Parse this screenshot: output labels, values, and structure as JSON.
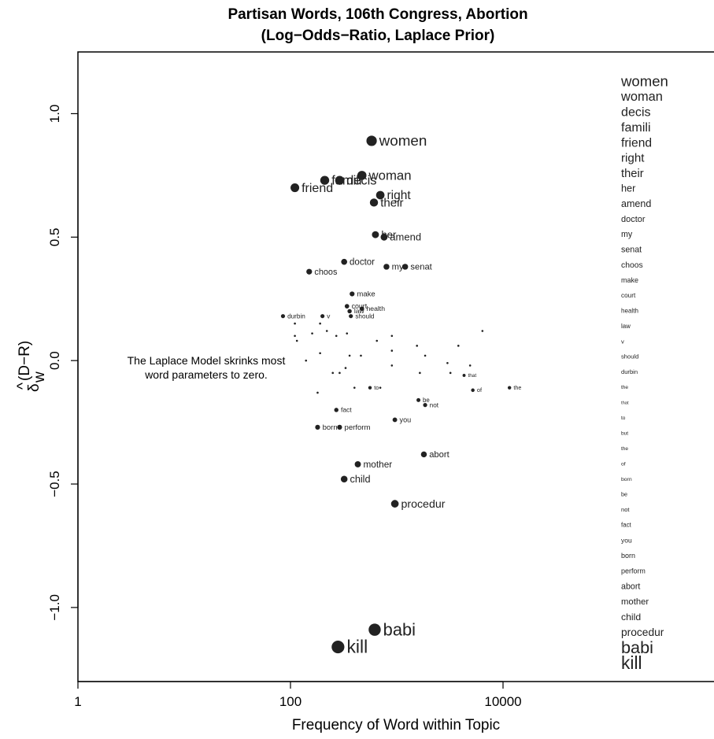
{
  "chart_data": {
    "type": "scatter",
    "title": "Partisan Words, 106th Congress,  Abortion",
    "subtitle": "(Log−Odds−Ratio, Laplace Prior)",
    "xlabel": "Frequency of Word within Topic",
    "ylabel_main": "δ",
    "ylabel_sub": "w",
    "ylabel_sup": "(D−R)",
    "ylabel_hat": "^",
    "x_scale": "log",
    "xlim": [
      1,
      1000000
    ],
    "ylim": [
      -1.3,
      1.25
    ],
    "x_ticks": [
      {
        "value": 1,
        "label": "1"
      },
      {
        "value": 100,
        "label": "100"
      },
      {
        "value": 10000,
        "label": "10000"
      }
    ],
    "y_ticks": [
      {
        "value": -1.0,
        "label": "−1.0"
      },
      {
        "value": -0.5,
        "label": "−0.5"
      },
      {
        "value": 0.0,
        "label": "0.0"
      },
      {
        "value": 0.5,
        "label": "0.5"
      },
      {
        "value": 1.0,
        "label": "1.0"
      }
    ],
    "annotation": [
      "The Laplace Model skrinks most",
      "word parameters to zero."
    ],
    "color": "#222222",
    "labeled_points": [
      {
        "word": "women",
        "x": 580,
        "y": 0.89
      },
      {
        "word": "woman",
        "x": 470,
        "y": 0.75
      },
      {
        "word": "decis",
        "x": 290,
        "y": 0.73
      },
      {
        "word": "famili",
        "x": 210,
        "y": 0.73
      },
      {
        "word": "friend",
        "x": 110,
        "y": 0.7
      },
      {
        "word": "right",
        "x": 700,
        "y": 0.67
      },
      {
        "word": "their",
        "x": 610,
        "y": 0.64
      },
      {
        "word": "her",
        "x": 630,
        "y": 0.51
      },
      {
        "word": "amend",
        "x": 760,
        "y": 0.5
      },
      {
        "word": "doctor",
        "x": 320,
        "y": 0.4
      },
      {
        "word": "my",
        "x": 800,
        "y": 0.38
      },
      {
        "word": "senat",
        "x": 1200,
        "y": 0.38
      },
      {
        "word": "choos",
        "x": 150,
        "y": 0.36
      },
      {
        "word": "make",
        "x": 380,
        "y": 0.27
      },
      {
        "word": "court",
        "x": 340,
        "y": 0.22
      },
      {
        "word": "health",
        "x": 470,
        "y": 0.21
      },
      {
        "word": "law",
        "x": 360,
        "y": 0.2
      },
      {
        "word": "v",
        "x": 200,
        "y": 0.18
      },
      {
        "word": "should",
        "x": 370,
        "y": 0.18
      },
      {
        "word": "durbin",
        "x": 85,
        "y": 0.18
      },
      {
        "word": "the",
        "x": 11500,
        "y": -0.11
      },
      {
        "word": "of",
        "x": 5200,
        "y": -0.12
      },
      {
        "word": "that",
        "x": 4300,
        "y": -0.06
      },
      {
        "word": "to",
        "x": 560,
        "y": -0.11
      },
      {
        "word": "be",
        "x": 1600,
        "y": -0.16
      },
      {
        "word": "not",
        "x": 1850,
        "y": -0.18
      },
      {
        "word": "fact",
        "x": 270,
        "y": -0.2
      },
      {
        "word": "you",
        "x": 960,
        "y": -0.24
      },
      {
        "word": "born",
        "x": 180,
        "y": -0.27
      },
      {
        "word": "perform",
        "x": 290,
        "y": -0.27
      },
      {
        "word": "abort",
        "x": 1800,
        "y": -0.38
      },
      {
        "word": "mother",
        "x": 430,
        "y": -0.42
      },
      {
        "word": "child",
        "x": 320,
        "y": -0.48
      },
      {
        "word": "procedur",
        "x": 960,
        "y": -0.58
      },
      {
        "word": "babi",
        "x": 620,
        "y": -1.09
      },
      {
        "word": "kill",
        "x": 280,
        "y": -1.16
      }
    ],
    "unlabeled_points": [
      [
        110,
        0.15
      ],
      [
        110,
        0.1
      ],
      [
        115,
        0.08
      ],
      [
        160,
        0.11
      ],
      [
        190,
        0.15
      ],
      [
        220,
        0.12
      ],
      [
        270,
        0.1
      ],
      [
        340,
        0.11
      ],
      [
        650,
        0.08
      ],
      [
        900,
        0.1
      ],
      [
        1550,
        0.06
      ],
      [
        3800,
        0.06
      ],
      [
        6400,
        0.12
      ],
      [
        190,
        0.03
      ],
      [
        360,
        0.02
      ],
      [
        460,
        0.02
      ],
      [
        900,
        0.04
      ],
      [
        1850,
        0.02
      ],
      [
        140,
        0.0
      ],
      [
        3000,
        -0.01
      ],
      [
        4900,
        -0.02
      ],
      [
        3200,
        -0.05
      ],
      [
        1650,
        -0.05
      ],
      [
        900,
        -0.02
      ],
      [
        330,
        -0.03
      ],
      [
        290,
        -0.05
      ],
      [
        250,
        -0.05
      ],
      [
        180,
        -0.13
      ],
      [
        400,
        -0.11
      ],
      [
        700,
        -0.11
      ]
    ],
    "right_column": [
      {
        "word": "women",
        "weight": 0.89
      },
      {
        "word": "woman",
        "weight": 0.75
      },
      {
        "word": "decis",
        "weight": 0.73
      },
      {
        "word": "famili",
        "weight": 0.73
      },
      {
        "word": "friend",
        "weight": 0.7
      },
      {
        "word": "right",
        "weight": 0.67
      },
      {
        "word": "their",
        "weight": 0.64
      },
      {
        "word": "her",
        "weight": 0.51
      },
      {
        "word": "amend",
        "weight": 0.5
      },
      {
        "word": "doctor",
        "weight": 0.4
      },
      {
        "word": "my",
        "weight": 0.38
      },
      {
        "word": "senat",
        "weight": 0.38
      },
      {
        "word": "choos",
        "weight": 0.36
      },
      {
        "word": "make",
        "weight": 0.27
      },
      {
        "word": "court",
        "weight": 0.22
      },
      {
        "word": "health",
        "weight": 0.21
      },
      {
        "word": "law",
        "weight": 0.2
      },
      {
        "word": "v",
        "weight": 0.18
      },
      {
        "word": "should",
        "weight": 0.18
      },
      {
        "word": "durbin",
        "weight": 0.18
      },
      {
        "word": "the",
        "weight": 0.11
      },
      {
        "word": "that",
        "weight": 0.06
      },
      {
        "word": "to",
        "weight": 0.11
      },
      {
        "word": "but",
        "weight": 0.11
      },
      {
        "word": "the",
        "weight": 0.11
      },
      {
        "word": "of",
        "weight": 0.12
      },
      {
        "word": "born",
        "weight": 0.13
      },
      {
        "word": "be",
        "weight": 0.16
      },
      {
        "word": "not",
        "weight": 0.18
      },
      {
        "word": "fact",
        "weight": 0.2
      },
      {
        "word": "you",
        "weight": 0.24
      },
      {
        "word": "born",
        "weight": 0.27
      },
      {
        "word": "perform",
        "weight": 0.27
      },
      {
        "word": "abort",
        "weight": 0.38
      },
      {
        "word": "mother",
        "weight": 0.42
      },
      {
        "word": "child",
        "weight": 0.48
      },
      {
        "word": "procedur",
        "weight": 0.58
      },
      {
        "word": "babi",
        "weight": 1.09
      },
      {
        "word": "kill",
        "weight": 1.16
      }
    ]
  }
}
